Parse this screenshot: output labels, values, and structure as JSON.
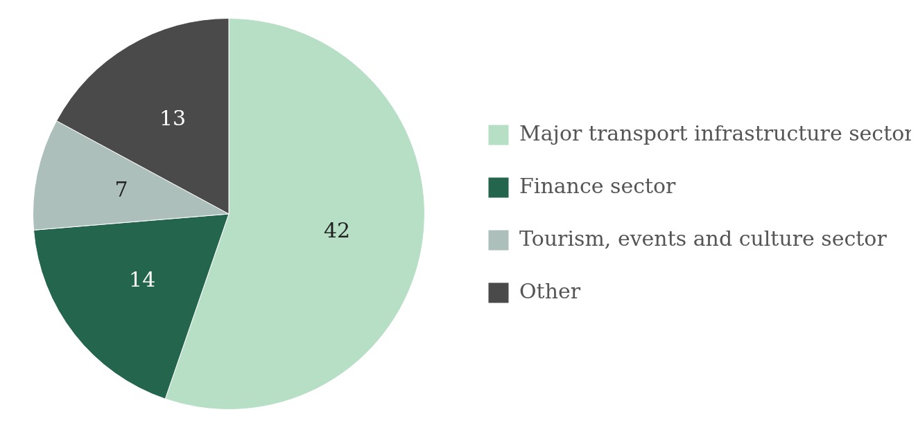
{
  "chart_data": {
    "type": "pie",
    "categories": [
      "Major transport infrastructure sector",
      "Finance sector",
      "Tourism, events and culture sector",
      "Other"
    ],
    "values": [
      42,
      14,
      7,
      13
    ],
    "colors": [
      "#b7dfc5",
      "#24654d",
      "#adbfba",
      "#4a4a4a"
    ],
    "legend": "right",
    "data_labels": true
  }
}
